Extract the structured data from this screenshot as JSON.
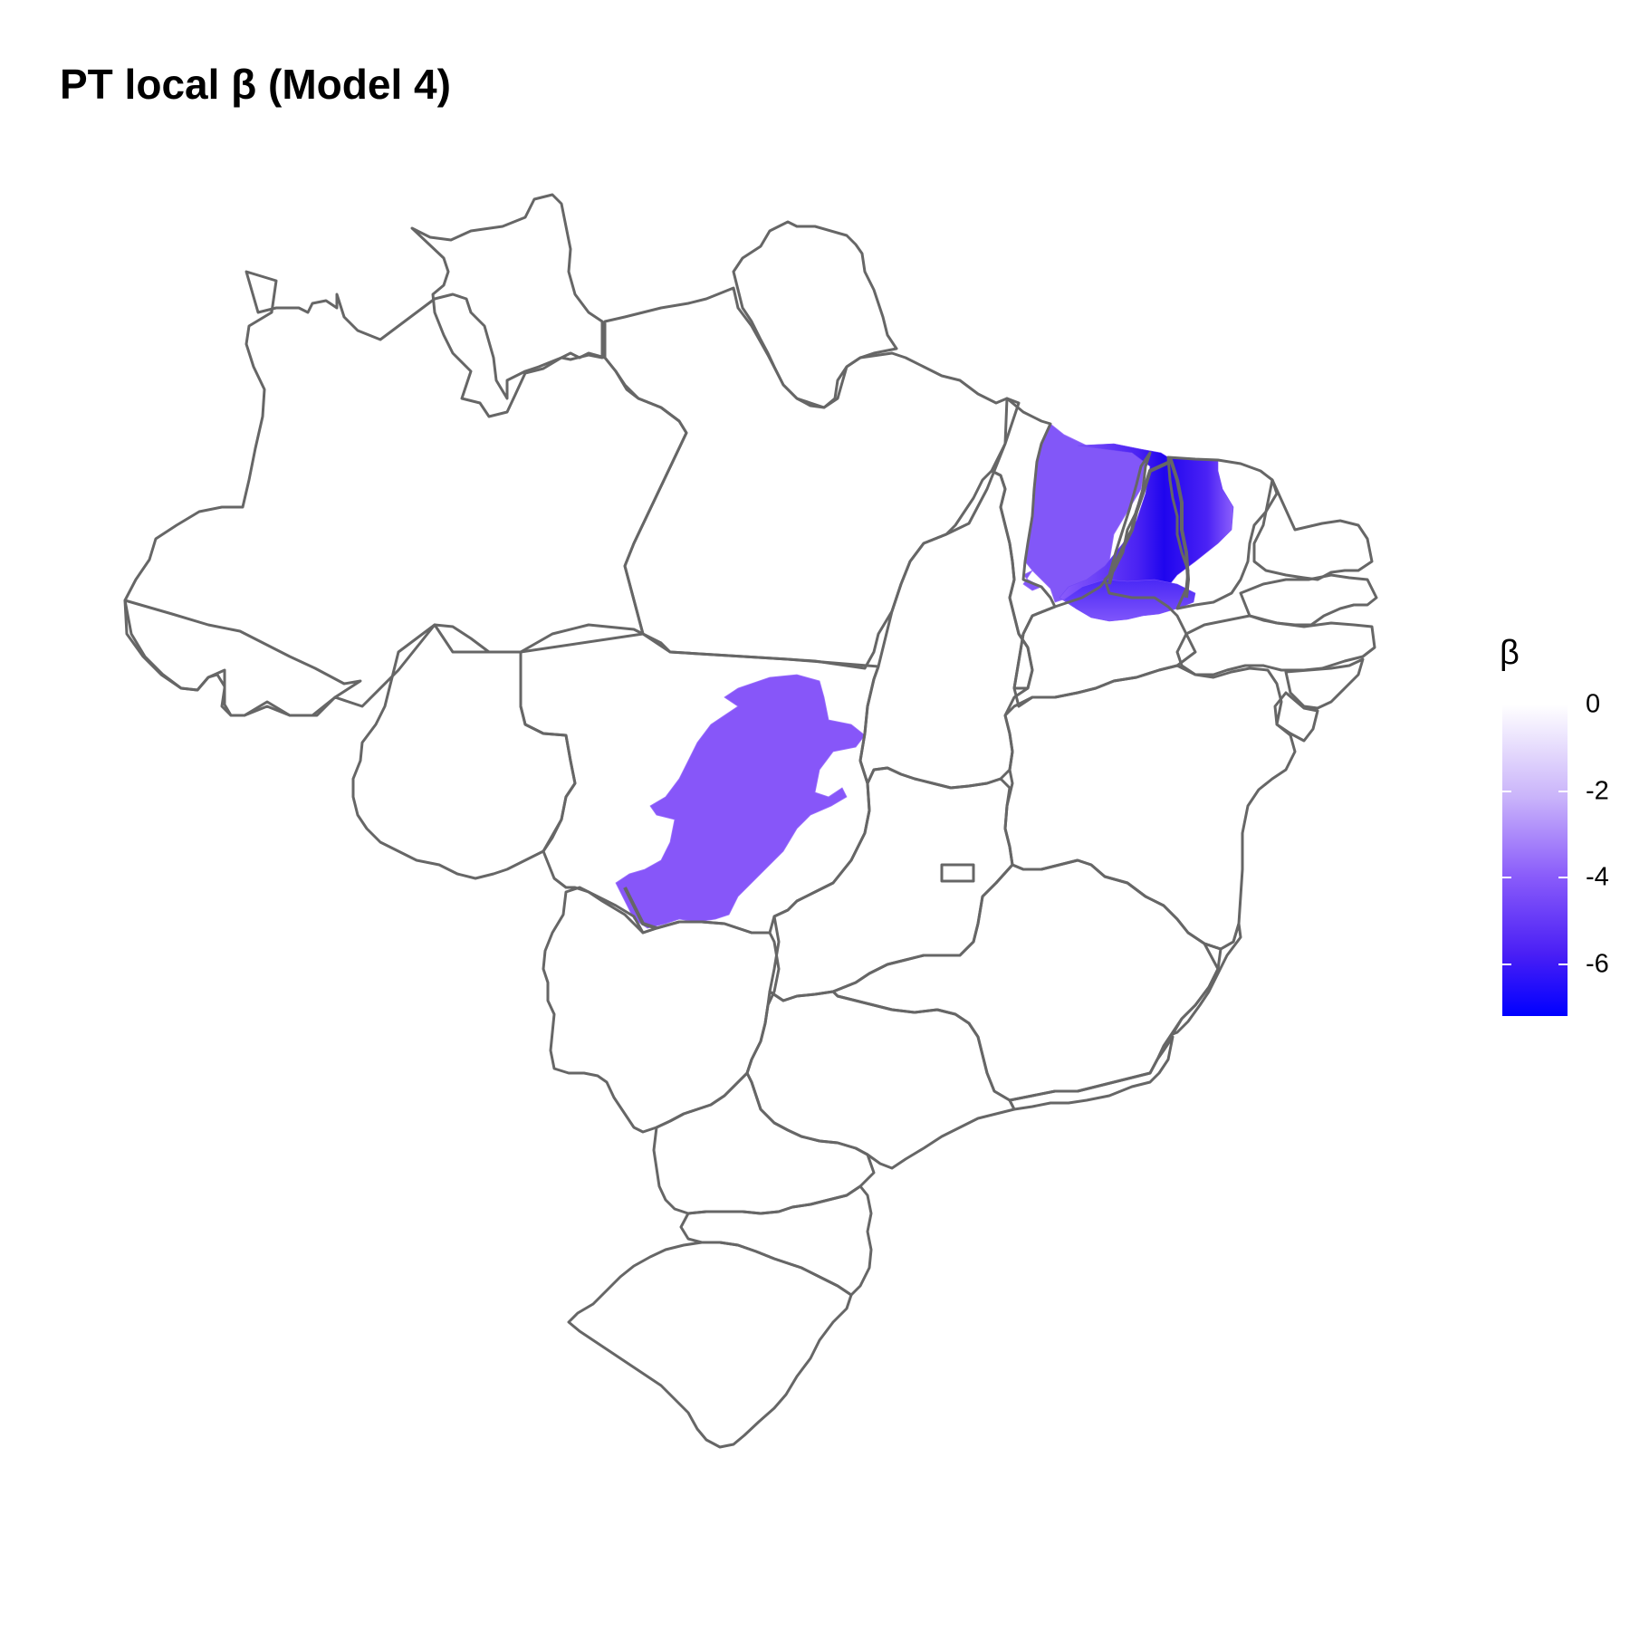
{
  "title": "PT local β (Model 4)",
  "legend": {
    "title": "β",
    "scale": {
      "min": -7.2,
      "max": 0,
      "color_high": "#FFFFFF",
      "color_low": "#0000FF"
    },
    "ticks": [
      {
        "value": 0,
        "label": "0"
      },
      {
        "value": -2,
        "label": "-2"
      },
      {
        "value": -4,
        "label": "-4"
      },
      {
        "value": -6,
        "label": "-6"
      }
    ]
  },
  "map": {
    "outline_color": "#666666",
    "highlighted_areas": [
      {
        "approx_beta": -3.6,
        "fill": "#8C57FA"
      },
      {
        "approx_beta": -4.0,
        "fill": "#8A5AFE"
      },
      {
        "approx_beta": -6.4,
        "fill": "#2A0AF0"
      },
      {
        "approx_beta": -5.8,
        "fill": "#4020F8"
      },
      {
        "approx_beta": -4.4,
        "fill": "#7A4CFA"
      }
    ]
  }
}
